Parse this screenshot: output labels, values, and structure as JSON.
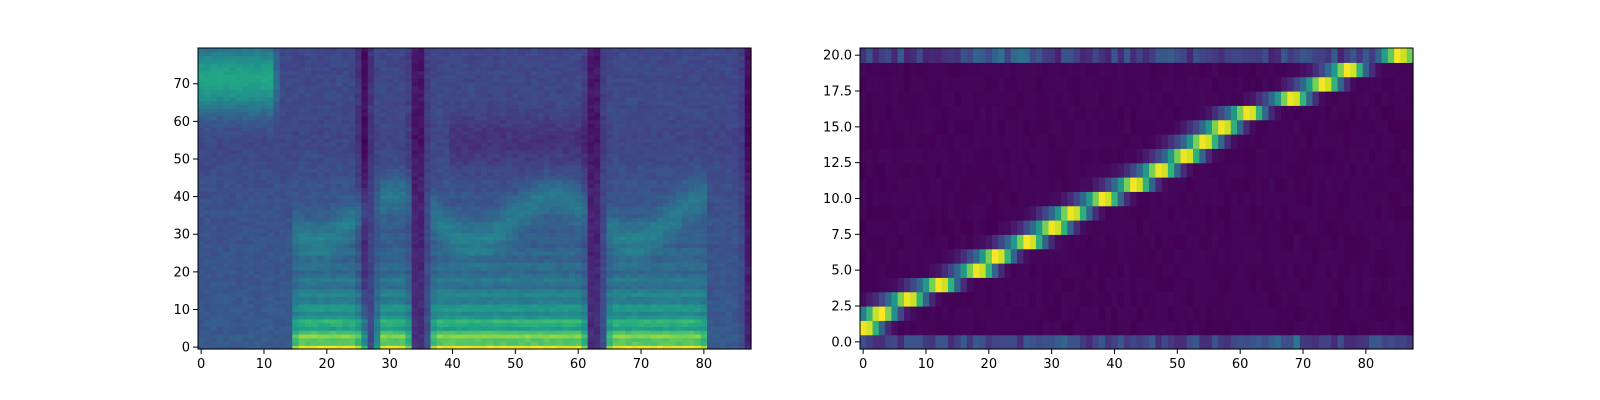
{
  "chart_data": [
    {
      "type": "heatmap",
      "title": "",
      "xlabel": "",
      "ylabel": "",
      "xlim": [
        0,
        88
      ],
      "ylim": [
        0,
        80
      ],
      "grid": false,
      "colormap": "viridis",
      "x_ticks": [
        "0",
        "10",
        "20",
        "30",
        "40",
        "50",
        "60",
        "70",
        "80"
      ],
      "y_ticks": [
        "0",
        "10",
        "20",
        "30",
        "40",
        "50",
        "60",
        "70"
      ],
      "frames": 88,
      "bins": 80
    },
    {
      "type": "heatmap",
      "title": "",
      "xlabel": "",
      "ylabel": "",
      "xlim": [
        0,
        88
      ],
      "ylim": [
        0,
        21
      ],
      "grid": false,
      "colormap": "viridis",
      "x_ticks": [
        "0",
        "10",
        "20",
        "30",
        "40",
        "50",
        "60",
        "70",
        "80"
      ],
      "y_ticks": [
        "0.0",
        "2.5",
        "5.0",
        "7.5",
        "10.0",
        "12.5",
        "15.0",
        "17.5",
        "20.0"
      ],
      "frames": 88,
      "rows": 21
    }
  ]
}
